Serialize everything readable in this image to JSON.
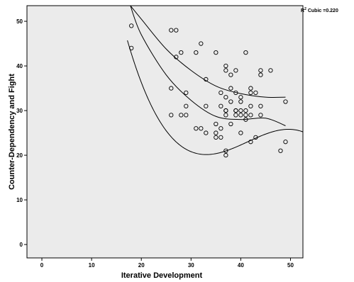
{
  "chart_data": {
    "type": "scatter",
    "xlabel": "Iterative Development",
    "ylabel": "Counter-Dependency and Fight",
    "xlim": [
      -3,
      52.5
    ],
    "ylim": [
      -3,
      53.5
    ],
    "xticks": [
      0,
      10,
      20,
      30,
      40,
      50
    ],
    "yticks": [
      0,
      10,
      20,
      30,
      40,
      50
    ],
    "grid": false,
    "background": "#ebebeb",
    "annotation": {
      "r2_label": "R",
      "r2_sup": "2",
      "r2_text": "Cubic =0.220"
    },
    "fit": {
      "model": "cubic",
      "coefficients": [
        178.3,
        -12.3,
        0.31,
        -0.0025
      ],
      "x_range": [
        17.2,
        52.5
      ],
      "ci_x": [
        17.8,
        20,
        25,
        30,
        35,
        40,
        45,
        49
      ],
      "ci_upper": [
        53.5,
        50.5,
        43.8,
        39.0,
        35.5,
        33.8,
        33.0,
        33.0
      ],
      "ci_lower": [
        53.5,
        47.0,
        38.0,
        32.3,
        28.7,
        28.0,
        28.3,
        26.6
      ]
    },
    "points": [
      [
        18,
        49
      ],
      [
        18,
        44
      ],
      [
        26,
        48
      ],
      [
        27,
        48
      ],
      [
        26,
        35
      ],
      [
        27,
        42
      ],
      [
        28,
        43
      ],
      [
        29,
        34
      ],
      [
        26,
        29
      ],
      [
        28,
        29
      ],
      [
        29,
        29
      ],
      [
        29,
        31
      ],
      [
        31,
        43
      ],
      [
        32,
        45
      ],
      [
        33,
        37
      ],
      [
        35,
        43
      ],
      [
        31,
        26
      ],
      [
        32,
        26
      ],
      [
        33,
        25
      ],
      [
        33,
        31
      ],
      [
        35,
        25
      ],
      [
        35,
        24
      ],
      [
        35,
        27
      ],
      [
        36,
        24
      ],
      [
        36,
        26
      ],
      [
        36,
        34
      ],
      [
        36,
        31
      ],
      [
        37,
        39
      ],
      [
        37,
        40
      ],
      [
        37,
        33
      ],
      [
        37,
        30
      ],
      [
        37,
        29
      ],
      [
        37,
        30
      ],
      [
        37,
        21
      ],
      [
        37,
        20
      ],
      [
        38,
        38
      ],
      [
        38,
        35
      ],
      [
        38,
        32
      ],
      [
        38,
        27
      ],
      [
        39,
        39
      ],
      [
        39,
        34
      ],
      [
        39,
        30
      ],
      [
        39,
        29
      ],
      [
        39,
        30
      ],
      [
        40,
        33
      ],
      [
        40,
        32
      ],
      [
        40,
        30
      ],
      [
        40,
        29
      ],
      [
        40,
        25
      ],
      [
        41,
        43
      ],
      [
        41,
        30
      ],
      [
        41,
        29
      ],
      [
        41,
        28
      ],
      [
        42,
        35
      ],
      [
        42,
        34
      ],
      [
        42,
        31
      ],
      [
        42,
        29
      ],
      [
        42,
        23
      ],
      [
        43,
        34
      ],
      [
        43,
        24
      ],
      [
        44,
        39
      ],
      [
        44,
        38
      ],
      [
        44,
        31
      ],
      [
        44,
        29
      ],
      [
        46,
        39
      ],
      [
        48,
        21
      ],
      [
        49,
        32
      ],
      [
        49,
        23
      ]
    ]
  }
}
